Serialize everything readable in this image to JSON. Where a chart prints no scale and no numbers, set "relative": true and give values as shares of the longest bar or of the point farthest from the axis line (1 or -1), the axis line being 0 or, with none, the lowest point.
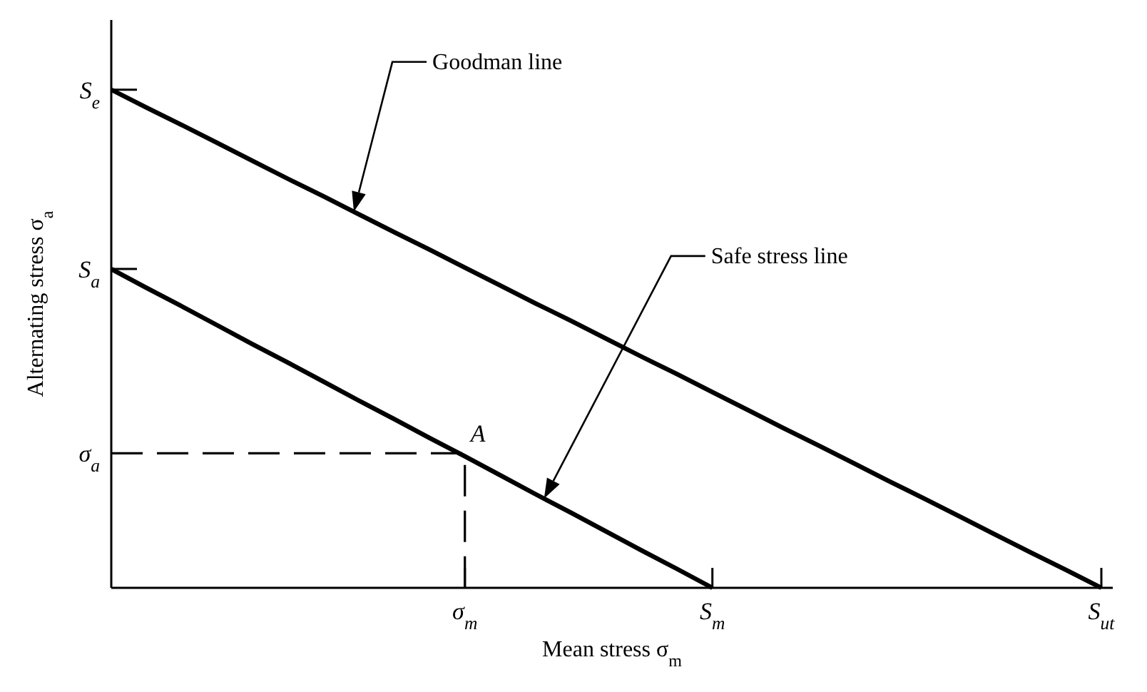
{
  "chart_data": {
    "type": "line",
    "relative": true,
    "xlabel": "Mean stress σ$_{m}$",
    "ylabel": "Alternating stress σ$_{a}$",
    "categories": [
      null,
      null,
      null,
      null,
      null,
      null,
      null,
      null,
      null,
      null,
      "σ$_{m}$",
      null,
      null,
      null,
      null,
      null,
      null,
      "S$_{m}$",
      null,
      null,
      null,
      null,
      null,
      null,
      null,
      null,
      null,
      null,
      "S$_{ut}$"
    ],
    "series": [
      {
        "name": "Goodman line",
        "color": "#000000",
        "values": [
          1,
          0.964,
          0.929,
          0.893,
          0.857,
          0.821,
          0.786,
          0.75,
          0.714,
          0.679,
          0.643,
          0.607,
          0.571,
          0.536,
          0.5,
          0.464,
          0.429,
          0.393,
          0.357,
          0.321,
          0.286,
          0.25,
          0.214,
          0.179,
          0.143,
          0.107,
          0.071,
          0.036,
          0
        ]
      },
      {
        "name": "Safe stress line",
        "color": "#000000",
        "values": [
          0.64,
          0.602,
          0.565,
          0.527,
          0.489,
          0.452,
          0.414,
          0.376,
          0.339,
          0.301,
          0.264,
          0.226,
          0.188,
          0.151,
          0.113,
          0.075,
          0.038,
          0,
          null,
          null,
          null,
          null,
          null,
          null,
          null,
          null,
          null,
          null,
          null
        ]
      }
    ],
    "ref_lines": [
      {
        "axis": "y",
        "value": 1,
        "label": "S$_{e}$"
      },
      {
        "axis": "y",
        "value": 0.64,
        "label": "S$_{a}$"
      },
      {
        "axis": "y",
        "value": 0.27,
        "label": "σ$_{a}$"
      }
    ],
    "annotations": [
      {
        "text": "A",
        "x": "σ$_{m}$",
        "y": 0.27
      }
    ]
  }
}
